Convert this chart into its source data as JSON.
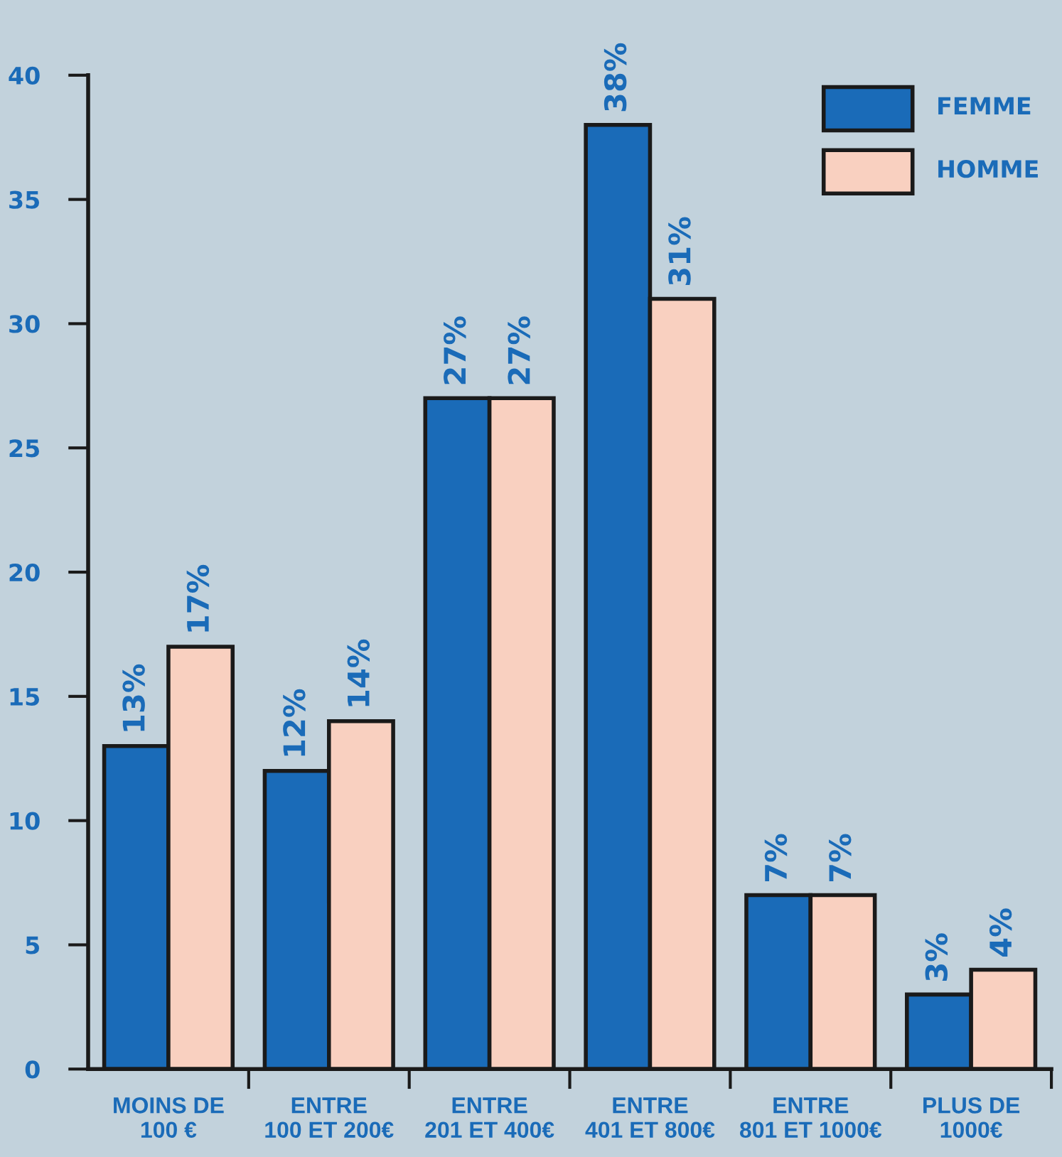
{
  "chart_data": {
    "type": "bar",
    "categories": [
      "MOINS DE\n100 €",
      "ENTRE\n100 ET 200€",
      "ENTRE\n201 ET 400€",
      "ENTRE\n401 ET 800€",
      "ENTRE\n801 ET 1000€",
      "PLUS DE\n1000€"
    ],
    "series": [
      {
        "name": "FEMME",
        "color": "#1a6bb8",
        "values": [
          13,
          12,
          27,
          38,
          7,
          3
        ],
        "value_labels": [
          "13%",
          "12%",
          "27%",
          "38%",
          "7%",
          "3%"
        ]
      },
      {
        "name": "HOMME",
        "color": "#f9d0c0",
        "values": [
          17,
          14,
          27,
          31,
          7,
          4
        ],
        "value_labels": [
          "17%",
          "14%",
          "27%",
          "31%",
          "7%",
          "4%"
        ]
      }
    ],
    "ylim": [
      0,
      40
    ],
    "yticks": [
      0,
      5,
      10,
      15,
      20,
      25,
      30,
      35,
      40
    ],
    "grid": false,
    "legend": "top right"
  }
}
